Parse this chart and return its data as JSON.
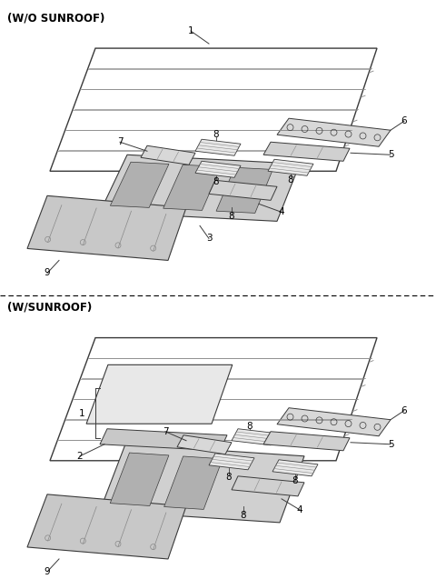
{
  "bg": "#ffffff",
  "section1_label": "(W/O SUNROOF)",
  "section2_label": "(W/SUNROOF)",
  "figsize": [
    4.8,
    6.37
  ],
  "dpi": 100
}
